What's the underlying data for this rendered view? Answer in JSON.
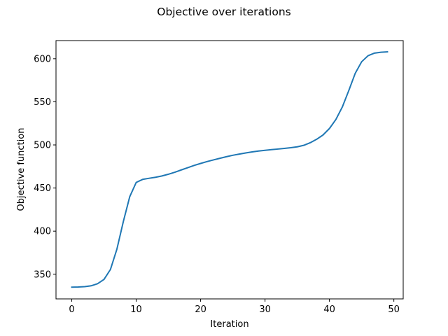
{
  "chart_data": {
    "type": "line",
    "title": "Objective over iterations",
    "xlabel": "Iteration",
    "ylabel": "Objective function",
    "xlim": [
      -2.45,
      51.45
    ],
    "ylim": [
      321.4,
      621.0
    ],
    "xticks": [
      0,
      10,
      20,
      30,
      40,
      50
    ],
    "yticks": [
      350,
      400,
      450,
      500,
      550,
      600
    ],
    "grid": false,
    "colors": {
      "line": "#1f77b4"
    },
    "series": [
      {
        "x": [
          0,
          1,
          2,
          3,
          4,
          5,
          6,
          7,
          8,
          9,
          10,
          11,
          12,
          13,
          14,
          15,
          16,
          17,
          18,
          19,
          20,
          21,
          22,
          23,
          24,
          25,
          26,
          27,
          28,
          29,
          30,
          31,
          32,
          33,
          34,
          35,
          36,
          37,
          38,
          39,
          40,
          41,
          42,
          43,
          44,
          45,
          46,
          47,
          48,
          49
        ],
        "y": [
          335.0,
          335.2,
          335.6,
          336.6,
          339.0,
          344.0,
          355.5,
          379.0,
          411.0,
          440.0,
          456.5,
          460.0,
          461.3,
          462.5,
          464.0,
          466.0,
          468.3,
          471.0,
          473.6,
          476.2,
          478.5,
          480.7,
          482.6,
          484.5,
          486.3,
          488.0,
          489.4,
          490.7,
          491.9,
          492.9,
          493.7,
          494.5,
          495.2,
          496.0,
          496.8,
          497.8,
          499.5,
          502.5,
          506.5,
          511.5,
          519.0,
          529.5,
          544.0,
          563.0,
          583.0,
          596.5,
          603.5,
          606.5,
          607.5,
          608.0
        ]
      }
    ]
  }
}
